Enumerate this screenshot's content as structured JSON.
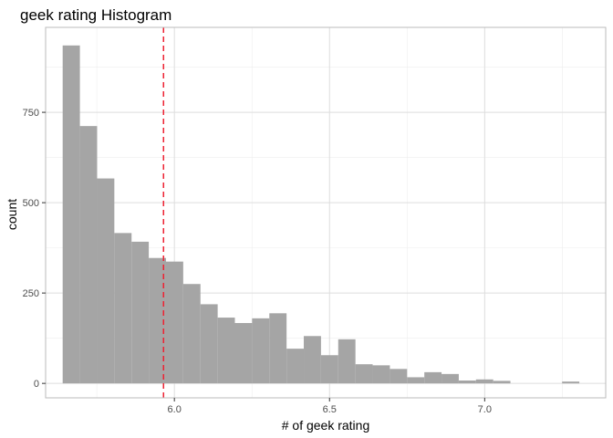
{
  "chart_data": {
    "type": "bar",
    "title": "geek rating Histogram",
    "xlabel": "# of geek rating",
    "ylabel": "count",
    "x_ticks": [
      "6.0",
      "6.5",
      "7.0"
    ],
    "x_tick_values": [
      6.0,
      6.5,
      7.0
    ],
    "y_ticks": [
      "0",
      "250",
      "500",
      "750"
    ],
    "y_tick_values": [
      0,
      250,
      500,
      750
    ],
    "xlim": [
      5.585,
      7.39
    ],
    "ylim": [
      -40,
      985
    ],
    "bin_width": 0.0555,
    "bins": [
      {
        "x0": 5.64,
        "count": 935
      },
      {
        "x0": 5.6955,
        "count": 712
      },
      {
        "x0": 5.751,
        "count": 567
      },
      {
        "x0": 5.8065,
        "count": 416
      },
      {
        "x0": 5.862,
        "count": 392
      },
      {
        "x0": 5.9175,
        "count": 347
      },
      {
        "x0": 5.973,
        "count": 337
      },
      {
        "x0": 6.0285,
        "count": 275
      },
      {
        "x0": 6.084,
        "count": 219
      },
      {
        "x0": 6.1395,
        "count": 182
      },
      {
        "x0": 6.195,
        "count": 167
      },
      {
        "x0": 6.2505,
        "count": 180
      },
      {
        "x0": 6.306,
        "count": 194
      },
      {
        "x0": 6.3615,
        "count": 96
      },
      {
        "x0": 6.417,
        "count": 131
      },
      {
        "x0": 6.4725,
        "count": 78
      },
      {
        "x0": 6.528,
        "count": 122
      },
      {
        "x0": 6.5835,
        "count": 53
      },
      {
        "x0": 6.639,
        "count": 50
      },
      {
        "x0": 6.6945,
        "count": 40
      },
      {
        "x0": 6.75,
        "count": 17
      },
      {
        "x0": 6.8055,
        "count": 31
      },
      {
        "x0": 6.861,
        "count": 26
      },
      {
        "x0": 6.9165,
        "count": 8
      },
      {
        "x0": 6.972,
        "count": 11
      },
      {
        "x0": 7.0275,
        "count": 7
      },
      {
        "x0": 7.083,
        "count": 0
      },
      {
        "x0": 7.1385,
        "count": 0
      },
      {
        "x0": 7.194,
        "count": 0
      },
      {
        "x0": 7.2495,
        "count": 5
      }
    ],
    "mean_line": {
      "x": 5.965
    },
    "colors": {
      "bar_fill": "#a5a5a5",
      "mean_line": "#ee2233",
      "grid_major": "#dddddd",
      "grid_minor": "#eeeeee",
      "panel_border": "#bbbbbb"
    },
    "grid": true,
    "legend": "none"
  }
}
